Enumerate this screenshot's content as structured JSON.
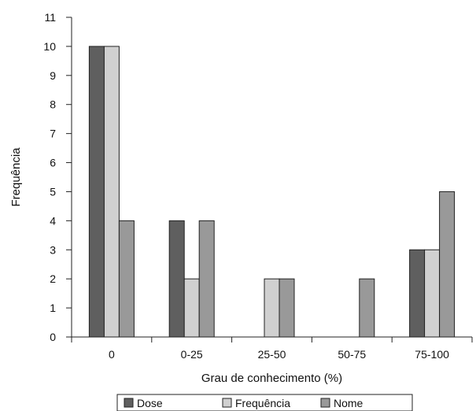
{
  "chart_data": {
    "type": "bar",
    "title": "",
    "xlabel": "Grau de conhecimento (%)",
    "ylabel": "Frequência",
    "categories": [
      "0",
      "0-25",
      "25-50",
      "50-75",
      "75-100"
    ],
    "series": [
      {
        "name": "Dose",
        "color": "#5f5f5f",
        "values": [
          10,
          4,
          0,
          0,
          3
        ]
      },
      {
        "name": "Frequência",
        "color": "#d0d0d0",
        "values": [
          10,
          2,
          2,
          0,
          3
        ]
      },
      {
        "name": "Nome",
        "color": "#999999",
        "values": [
          4,
          4,
          2,
          2,
          5
        ]
      }
    ],
    "ylim": [
      0,
      11
    ],
    "yticks": [
      0,
      1,
      2,
      3,
      4,
      5,
      6,
      7,
      8,
      9,
      10,
      11
    ],
    "grid": false,
    "legend": "bottom"
  }
}
